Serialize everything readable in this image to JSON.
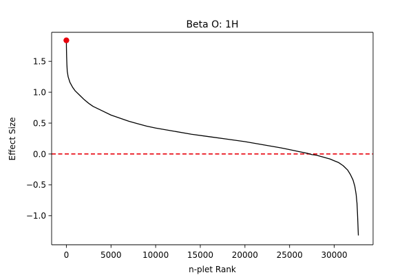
{
  "chart_data": {
    "type": "line",
    "title": "Beta O: 1H",
    "xlabel": "n-plet Rank",
    "ylabel": "Effect Size",
    "xlim": [
      -1650,
      34350
    ],
    "ylim": [
      -1.47,
      1.97
    ],
    "xticks": [
      0,
      5000,
      10000,
      15000,
      20000,
      25000,
      30000
    ],
    "xtick_labels": [
      "0",
      "5000",
      "10000",
      "15000",
      "20000",
      "25000",
      "30000"
    ],
    "yticks": [
      -1.0,
      -0.5,
      0.0,
      0.5,
      1.0,
      1.5
    ],
    "ytick_labels": [
      "−1.0",
      "−0.5",
      "0.0",
      "0.5",
      "1.0",
      "1.5"
    ],
    "grid": false,
    "series": [
      {
        "color": "#000000",
        "x": [
          0,
          10,
          30,
          60,
          100,
          200,
          400,
          700,
          1000,
          1500,
          2000,
          2500,
          3000,
          4000,
          5000,
          6000,
          7000,
          8000,
          9000,
          10000,
          12000,
          14000,
          16000,
          18000,
          20000,
          22000,
          24000,
          25000,
          26000,
          27000,
          27500,
          28000,
          28500,
          29000,
          29500,
          30000,
          30500,
          31000,
          31500,
          31800,
          32100,
          32300,
          32450,
          32550,
          32600,
          32650,
          32700
        ],
        "y": [
          1.84,
          1.72,
          1.58,
          1.45,
          1.34,
          1.25,
          1.16,
          1.08,
          1.02,
          0.95,
          0.88,
          0.82,
          0.77,
          0.7,
          0.63,
          0.58,
          0.53,
          0.49,
          0.45,
          0.42,
          0.37,
          0.32,
          0.28,
          0.24,
          0.2,
          0.15,
          0.1,
          0.07,
          0.04,
          0.01,
          -0.01,
          -0.02,
          -0.04,
          -0.06,
          -0.08,
          -0.11,
          -0.14,
          -0.19,
          -0.26,
          -0.33,
          -0.42,
          -0.52,
          -0.65,
          -0.8,
          -0.95,
          -1.13,
          -1.32
        ]
      }
    ],
    "highlight_point": {
      "x": 0,
      "y": 1.84,
      "color": "#e8000b"
    },
    "reference_line": {
      "y": 0.0,
      "color": "#e8000b",
      "style": "dashed"
    }
  }
}
